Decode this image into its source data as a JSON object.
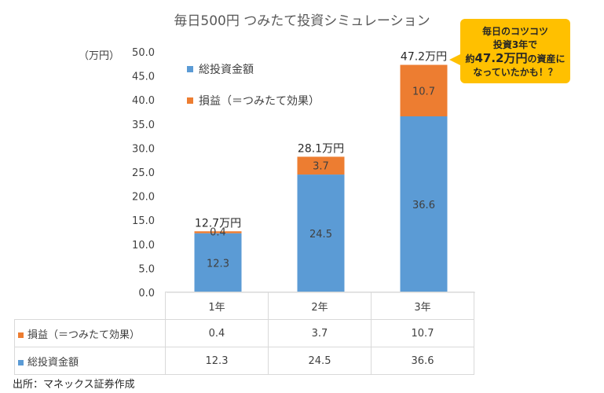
{
  "title": "毎日500円 つみたて投資シミュレーション",
  "unit_label": "（万円）",
  "colors": {
    "total_investment": "#5b9bd5",
    "profit": "#ed7d31",
    "callout": "#ffc000"
  },
  "callout": {
    "line1": "毎日のコツコツ",
    "line2": "投資3年で",
    "line3_prefix": "約",
    "line3_big": "47.2万円",
    "line3_suffix": "の資産に",
    "line4": "なっていたかも！？"
  },
  "source": "出所：マネックス証券作成",
  "chart_data": {
    "type": "bar",
    "stacked": true,
    "title": "毎日500円 つみたて投資シミュレーション",
    "ylabel": "（万円）",
    "ylim": [
      0,
      50
    ],
    "yticks": [
      "0.0",
      "5.0",
      "10.0",
      "15.0",
      "20.0",
      "25.0",
      "30.0",
      "35.0",
      "40.0",
      "45.0",
      "50.0"
    ],
    "categories": [
      "1年",
      "2年",
      "3年"
    ],
    "series": [
      {
        "name": "総投資金額",
        "values": [
          12.3,
          24.5,
          36.6
        ],
        "labels": [
          "12.3",
          "24.5",
          "36.6"
        ]
      },
      {
        "name": "損益（＝つみたて効果）",
        "values": [
          0.4,
          3.7,
          10.7
        ],
        "labels": [
          "0.4",
          "3.7",
          "10.7"
        ]
      }
    ],
    "totals": [
      "12.7万円",
      "28.1万円",
      "47.2万円"
    ],
    "legend_position": "top-left inside plot",
    "grid": false,
    "data_table": true
  }
}
